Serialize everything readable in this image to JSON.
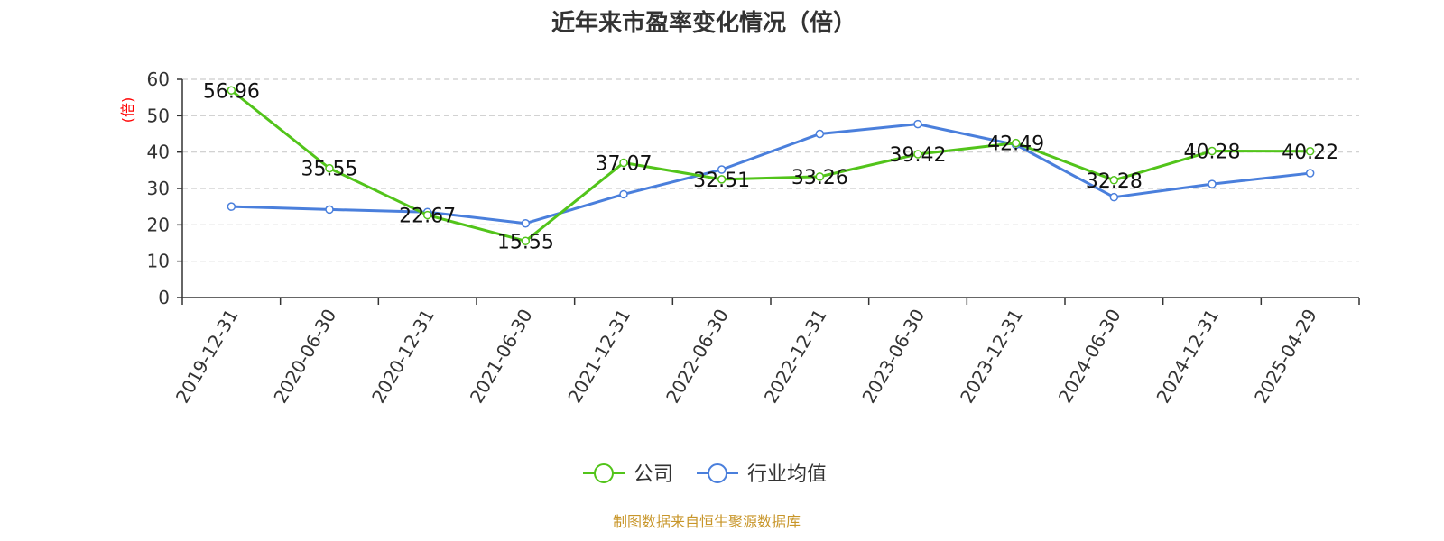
{
  "chart_data": {
    "type": "line",
    "title": "近年来市盈率变化情况（倍）",
    "ylabel": "(倍)",
    "xlabel": "",
    "ylim": [
      0,
      60
    ],
    "yticks": [
      0,
      10,
      20,
      30,
      40,
      50,
      60
    ],
    "grid": "horizontal-dashed",
    "legend": "bottom-center",
    "categories": [
      "2019-12-31",
      "2020-06-30",
      "2020-12-31",
      "2021-06-30",
      "2021-12-31",
      "2022-06-30",
      "2022-12-31",
      "2023-06-30",
      "2023-12-31",
      "2024-06-30",
      "2024-12-31",
      "2025-04-29"
    ],
    "series": [
      {
        "name": "公司",
        "color": "#52c41a",
        "labeled": true,
        "values": [
          56.96,
          35.55,
          22.67,
          15.55,
          37.07,
          32.51,
          33.26,
          39.42,
          42.49,
          32.28,
          40.28,
          40.22
        ],
        "labels": [
          "56.96",
          "35.55",
          "22.67",
          "15.55",
          "37.07",
          "32.51",
          "33.26",
          "39.42",
          "42.49",
          "32.28",
          "40.28",
          "40.22"
        ]
      },
      {
        "name": "行业均值",
        "color": "#4a7fdc",
        "labeled": false,
        "values": [
          25.0,
          24.2,
          23.5,
          20.4,
          28.4,
          35.2,
          45.0,
          47.7,
          42.0,
          27.6,
          31.2,
          34.2
        ]
      }
    ]
  },
  "source": "制图数据来自恒生聚源数据库"
}
